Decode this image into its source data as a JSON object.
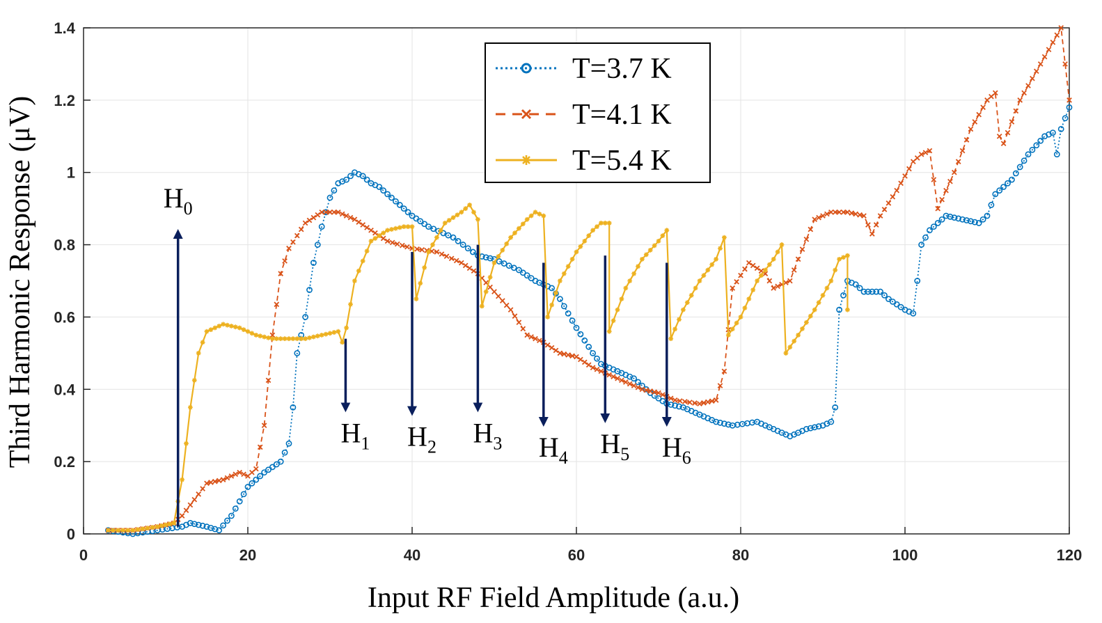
{
  "chart_data": {
    "type": "line",
    "xlabel": "Input RF Field Amplitude (a.u.)",
    "ylabel": "Third Harmonic Response (μV)",
    "xlim": [
      0,
      120
    ],
    "ylim": [
      0,
      1.4
    ],
    "x_ticks": [
      "0",
      "20",
      "40",
      "60",
      "80",
      "100",
      "120"
    ],
    "y_ticks": [
      "0",
      "0.2",
      "0.4",
      "0.6",
      "0.8",
      "1",
      "1.2",
      "1.4"
    ],
    "grid": true,
    "legend_position": "top-center",
    "series": [
      {
        "name": "T=3.7 K",
        "color": "#0072BD",
        "line": "dotted",
        "marker": "circle",
        "points": [
          [
            3,
            0.01
          ],
          [
            6,
            0.0
          ],
          [
            9,
            0.01
          ],
          [
            12,
            0.02
          ],
          [
            13,
            0.03
          ],
          [
            15,
            0.02
          ],
          [
            16.5,
            0.01
          ],
          [
            18,
            0.05
          ],
          [
            20,
            0.13
          ],
          [
            22,
            0.17
          ],
          [
            24,
            0.2
          ],
          [
            25,
            0.25
          ],
          [
            25.5,
            0.35
          ],
          [
            26,
            0.5
          ],
          [
            27,
            0.6
          ],
          [
            28,
            0.75
          ],
          [
            29,
            0.85
          ],
          [
            30,
            0.93
          ],
          [
            31,
            0.97
          ],
          [
            32,
            0.98
          ],
          [
            33,
            1.0
          ],
          [
            34,
            0.99
          ],
          [
            35,
            0.97
          ],
          [
            36,
            0.96
          ],
          [
            38,
            0.92
          ],
          [
            40,
            0.88
          ],
          [
            42,
            0.85
          ],
          [
            45,
            0.82
          ],
          [
            48,
            0.77
          ],
          [
            50,
            0.76
          ],
          [
            53,
            0.73
          ],
          [
            55,
            0.7
          ],
          [
            57,
            0.68
          ],
          [
            58,
            0.65
          ],
          [
            60,
            0.57
          ],
          [
            62,
            0.5
          ],
          [
            63,
            0.47
          ],
          [
            65,
            0.45
          ],
          [
            67,
            0.43
          ],
          [
            69,
            0.39
          ],
          [
            71,
            0.36
          ],
          [
            73,
            0.35
          ],
          [
            75,
            0.33
          ],
          [
            77,
            0.31
          ],
          [
            79,
            0.3
          ],
          [
            82,
            0.31
          ],
          [
            84,
            0.29
          ],
          [
            86,
            0.27
          ],
          [
            88,
            0.29
          ],
          [
            90,
            0.3
          ],
          [
            91,
            0.31
          ],
          [
            91.5,
            0.35
          ],
          [
            92,
            0.62
          ],
          [
            93,
            0.7
          ],
          [
            94,
            0.69
          ],
          [
            95,
            0.67
          ],
          [
            97,
            0.67
          ],
          [
            98,
            0.65
          ],
          [
            100,
            0.62
          ],
          [
            101,
            0.61
          ],
          [
            101.5,
            0.7
          ],
          [
            102,
            0.8
          ],
          [
            103,
            0.84
          ],
          [
            105,
            0.88
          ],
          [
            107,
            0.87
          ],
          [
            109,
            0.86
          ],
          [
            110,
            0.88
          ],
          [
            111,
            0.94
          ],
          [
            113,
            0.98
          ],
          [
            115,
            1.05
          ],
          [
            117,
            1.1
          ],
          [
            118,
            1.11
          ],
          [
            118.5,
            1.05
          ],
          [
            119,
            1.12
          ],
          [
            120,
            1.18
          ]
        ]
      },
      {
        "name": "T=4.1 K",
        "color": "#D95319",
        "line": "dashed",
        "marker": "x",
        "points": [
          [
            3,
            0.01
          ],
          [
            6,
            0.01
          ],
          [
            9,
            0.02
          ],
          [
            11,
            0.03
          ],
          [
            12,
            0.05
          ],
          [
            13,
            0.08
          ],
          [
            15,
            0.14
          ],
          [
            17,
            0.15
          ],
          [
            19,
            0.17
          ],
          [
            20,
            0.16
          ],
          [
            21,
            0.18
          ],
          [
            22,
            0.3
          ],
          [
            23,
            0.55
          ],
          [
            24,
            0.72
          ],
          [
            25,
            0.79
          ],
          [
            27,
            0.86
          ],
          [
            29,
            0.89
          ],
          [
            31,
            0.89
          ],
          [
            33,
            0.87
          ],
          [
            35,
            0.84
          ],
          [
            37,
            0.81
          ],
          [
            40,
            0.79
          ],
          [
            43,
            0.78
          ],
          [
            46,
            0.75
          ],
          [
            48,
            0.72
          ],
          [
            50,
            0.67
          ],
          [
            52,
            0.62
          ],
          [
            54,
            0.55
          ],
          [
            56,
            0.53
          ],
          [
            58,
            0.5
          ],
          [
            60,
            0.49
          ],
          [
            62,
            0.46
          ],
          [
            64,
            0.44
          ],
          [
            66,
            0.42
          ],
          [
            68,
            0.4
          ],
          [
            70,
            0.39
          ],
          [
            72,
            0.37
          ],
          [
            75,
            0.36
          ],
          [
            77,
            0.37
          ],
          [
            78,
            0.45
          ],
          [
            79,
            0.68
          ],
          [
            81,
            0.75
          ],
          [
            83,
            0.72
          ],
          [
            84,
            0.68
          ],
          [
            85,
            0.69
          ],
          [
            86,
            0.7
          ],
          [
            87,
            0.76
          ],
          [
            89,
            0.87
          ],
          [
            91,
            0.89
          ],
          [
            93,
            0.89
          ],
          [
            95,
            0.88
          ],
          [
            96,
            0.83
          ],
          [
            97,
            0.88
          ],
          [
            99,
            0.95
          ],
          [
            101,
            1.03
          ],
          [
            102,
            1.05
          ],
          [
            103,
            1.06
          ],
          [
            104,
            0.9
          ],
          [
            106,
            1.0
          ],
          [
            108,
            1.12
          ],
          [
            110,
            1.2
          ],
          [
            111,
            1.22
          ],
          [
            111.5,
            1.1
          ],
          [
            112,
            1.08
          ],
          [
            114,
            1.2
          ],
          [
            116,
            1.28
          ],
          [
            118,
            1.36
          ],
          [
            119,
            1.4
          ],
          [
            119.5,
            1.3
          ],
          [
            120,
            1.2
          ]
        ]
      },
      {
        "name": "T=5.4 K",
        "color": "#EDB120",
        "line": "solid",
        "marker": "asterisk",
        "points": [
          [
            3,
            0.01
          ],
          [
            6,
            0.01
          ],
          [
            9,
            0.02
          ],
          [
            11,
            0.03
          ],
          [
            12,
            0.15
          ],
          [
            13,
            0.35
          ],
          [
            14,
            0.5
          ],
          [
            15,
            0.56
          ],
          [
            17,
            0.58
          ],
          [
            19,
            0.57
          ],
          [
            21,
            0.55
          ],
          [
            23,
            0.54
          ],
          [
            25,
            0.54
          ],
          [
            27,
            0.54
          ],
          [
            29,
            0.55
          ],
          [
            31,
            0.56
          ],
          [
            31.5,
            0.53
          ],
          [
            32,
            0.57
          ],
          [
            33,
            0.7
          ],
          [
            35,
            0.81
          ],
          [
            37,
            0.84
          ],
          [
            39,
            0.85
          ],
          [
            40,
            0.85
          ],
          [
            40.5,
            0.65
          ],
          [
            42,
            0.78
          ],
          [
            44,
            0.86
          ],
          [
            46,
            0.89
          ],
          [
            47,
            0.91
          ],
          [
            48,
            0.87
          ],
          [
            48.5,
            0.63
          ],
          [
            50,
            0.75
          ],
          [
            52,
            0.82
          ],
          [
            54,
            0.87
          ],
          [
            55,
            0.89
          ],
          [
            56,
            0.88
          ],
          [
            56.5,
            0.6
          ],
          [
            58,
            0.7
          ],
          [
            60,
            0.78
          ],
          [
            62,
            0.84
          ],
          [
            63,
            0.86
          ],
          [
            64,
            0.86
          ],
          [
            64,
            0.56
          ],
          [
            66,
            0.68
          ],
          [
            68,
            0.76
          ],
          [
            70,
            0.81
          ],
          [
            71,
            0.84
          ],
          [
            71.5,
            0.54
          ],
          [
            73,
            0.62
          ],
          [
            75,
            0.7
          ],
          [
            77,
            0.76
          ],
          [
            78,
            0.82
          ],
          [
            78.5,
            0.55
          ],
          [
            80,
            0.6
          ],
          [
            82,
            0.7
          ],
          [
            84,
            0.76
          ],
          [
            85,
            0.8
          ],
          [
            85.5,
            0.5
          ],
          [
            87,
            0.55
          ],
          [
            89,
            0.62
          ],
          [
            91,
            0.7
          ],
          [
            92,
            0.76
          ],
          [
            93,
            0.77
          ],
          [
            93,
            0.62
          ]
        ]
      }
    ],
    "annotations": [
      {
        "main": "H",
        "sub": "0",
        "x": 11.5,
        "y_from": 0.02,
        "y_to": 0.83,
        "direction": "up"
      },
      {
        "main": "H",
        "sub": "1",
        "x": 31.9,
        "y_from": 0.54,
        "y_to": 0.35,
        "direction": "down"
      },
      {
        "main": "H",
        "sub": "2",
        "x": 40.0,
        "y_from": 0.78,
        "y_to": 0.34,
        "direction": "down"
      },
      {
        "main": "H",
        "sub": "3",
        "x": 48.0,
        "y_from": 0.8,
        "y_to": 0.35,
        "direction": "down"
      },
      {
        "main": "H",
        "sub": "4",
        "x": 56.0,
        "y_from": 0.75,
        "y_to": 0.31,
        "direction": "down"
      },
      {
        "main": "H",
        "sub": "5",
        "x": 63.5,
        "y_from": 0.77,
        "y_to": 0.32,
        "direction": "down"
      },
      {
        "main": "H",
        "sub": "6",
        "x": 71.0,
        "y_from": 0.75,
        "y_to": 0.31,
        "direction": "down"
      }
    ]
  }
}
